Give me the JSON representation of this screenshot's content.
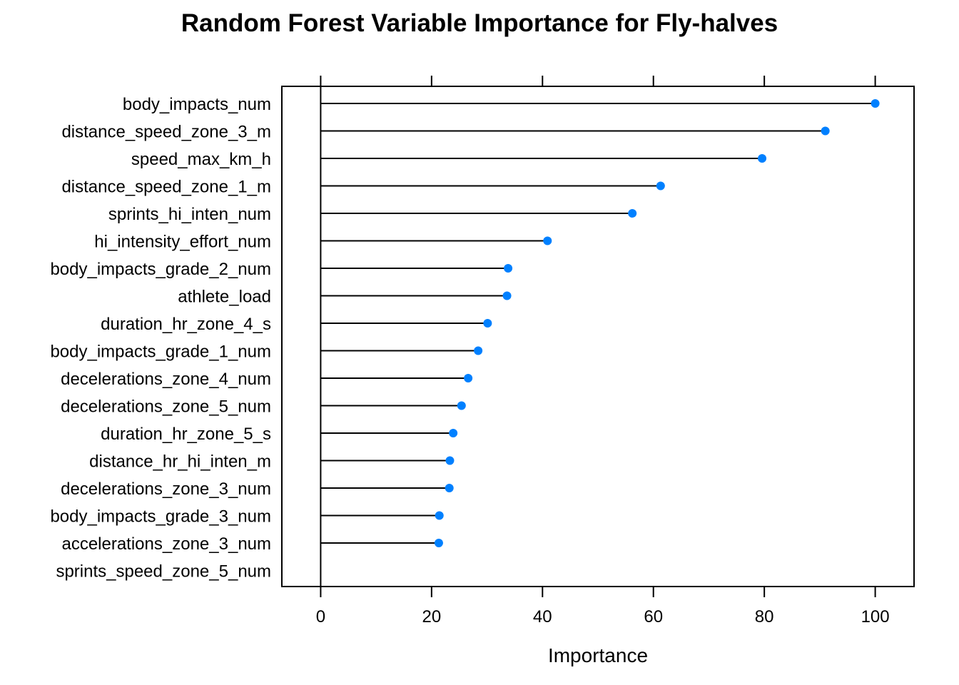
{
  "chart_data": {
    "type": "dotplot",
    "title": "Random Forest Variable Importance for Fly-halves",
    "xlabel": "Importance",
    "ylabel": "",
    "xlim": [
      -7,
      107
    ],
    "xticks": [
      0,
      20,
      40,
      60,
      80,
      100
    ],
    "grid": false,
    "legend": "none",
    "colors": {
      "point": "#0080ff",
      "line": "#000000"
    },
    "categories": [
      "body_impacts_num",
      "distance_speed_zone_3_m",
      "speed_max_km_h",
      "distance_speed_zone_1_m",
      "sprints_hi_inten_num",
      "hi_intensity_effort_num",
      "body_impacts_grade_2_num",
      "athlete_load",
      "duration_hr_zone_4_s",
      "body_impacts_grade_1_num",
      "decelerations_zone_4_num",
      "decelerations_zone_5_num",
      "duration_hr_zone_5_s",
      "distance_hr_hi_inten_m",
      "decelerations_zone_3_num",
      "body_impacts_grade_3_num",
      "accelerations_zone_3_num",
      "sprints_speed_zone_5_num"
    ],
    "values": [
      100,
      91,
      79.6,
      61.3,
      56.2,
      40.9,
      33.8,
      33.6,
      30.1,
      28.4,
      26.6,
      25.4,
      23.9,
      23.3,
      23.2,
      21.4,
      21.3,
      0
    ]
  }
}
